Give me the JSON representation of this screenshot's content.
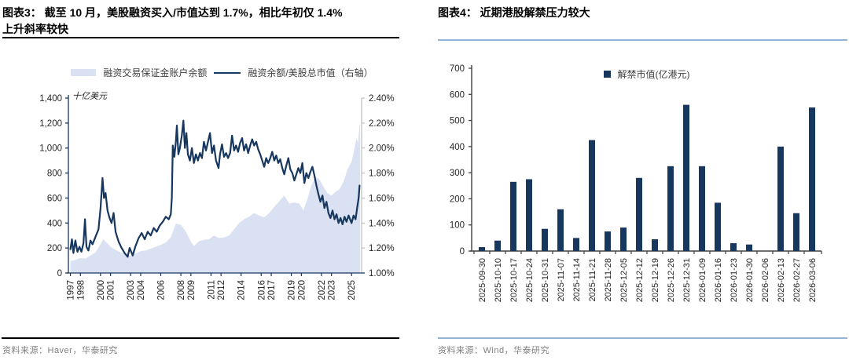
{
  "colors": {
    "navy": "#17375e",
    "area_fill": "#d9e1f2",
    "axis_dark": "#17375e",
    "axis_gray": "#bfbfbf",
    "axis_black": "#404040",
    "label_color": "#262626",
    "underline_black": "#000000",
    "underline_blue": "#95b3d7",
    "source_gray": "#808080"
  },
  "left_panel": {
    "title_line1": "图表3：  截至 10 月，美股融资买入/市值达到 1.7%，相比年初仅 1.4%",
    "title_line2": "上升斜率较快",
    "legend_area_label": "融资交易保证金账户余额",
    "legend_line_label": "融资余额/美股总市值（右轴）",
    "source": "资料来源：Haver，华泰研究"
  },
  "right_panel": {
    "title": "图表4：  近期港股解禁压力较大",
    "legend_label": "解禁市值(亿港元)",
    "source": "资料来源：Wind，华泰研究"
  },
  "chart_data": [
    {
      "type": "area",
      "subtype": "combo-area-line",
      "title": "美股融资交易保证金账户余额与融资余额/美股总市值",
      "x_domain": [
        1996.8,
        2026.0
      ],
      "x_tick_years": [
        1997,
        1998,
        2000,
        2001,
        2003,
        2004,
        2006,
        2008,
        2009,
        2011,
        2012,
        2014,
        2016,
        2017,
        2019,
        2020,
        2022,
        2023,
        2025
      ],
      "y_left": {
        "unit": "十亿美元",
        "min": 0,
        "max": 1400,
        "step": 200,
        "tick_labels": [
          "0",
          "200",
          "400",
          "600",
          "800",
          "1,000",
          "1,200",
          "1,400"
        ]
      },
      "y_right": {
        "min": 1.0,
        "max": 2.4,
        "step": 0.2,
        "tick_labels": [
          "1.00%",
          "1.20%",
          "1.40%",
          "1.60%",
          "1.80%",
          "2.00%",
          "2.20%",
          "2.40%"
        ]
      },
      "series": [
        {
          "name": "融资交易保证金账户余额",
          "kind": "area",
          "axis": "left",
          "points": [
            [
              1997.0,
              95
            ],
            [
              1997.5,
              105
            ],
            [
              1998.0,
              120
            ],
            [
              1998.5,
              115
            ],
            [
              1999.0,
              140
            ],
            [
              1999.5,
              165
            ],
            [
              2000.0,
              230
            ],
            [
              2000.25,
              270
            ],
            [
              2000.6,
              245
            ],
            [
              2001.0,
              210
            ],
            [
              2001.5,
              185
            ],
            [
              2002.0,
              165
            ],
            [
              2002.5,
              150
            ],
            [
              2003.0,
              140
            ],
            [
              2003.5,
              155
            ],
            [
              2004.0,
              175
            ],
            [
              2004.5,
              180
            ],
            [
              2005.0,
              195
            ],
            [
              2005.5,
              210
            ],
            [
              2006.0,
              225
            ],
            [
              2006.5,
              245
            ],
            [
              2007.0,
              285
            ],
            [
              2007.5,
              395
            ],
            [
              2008.0,
              385
            ],
            [
              2008.5,
              330
            ],
            [
              2009.0,
              250
            ],
            [
              2009.3,
              215
            ],
            [
              2009.8,
              255
            ],
            [
              2010.3,
              265
            ],
            [
              2010.8,
              270
            ],
            [
              2011.3,
              300
            ],
            [
              2011.8,
              280
            ],
            [
              2012.3,
              285
            ],
            [
              2012.8,
              300
            ],
            [
              2013.3,
              350
            ],
            [
              2013.8,
              400
            ],
            [
              2014.3,
              430
            ],
            [
              2014.8,
              450
            ],
            [
              2015.3,
              480
            ],
            [
              2015.8,
              460
            ],
            [
              2016.3,
              445
            ],
            [
              2016.8,
              480
            ],
            [
              2017.3,
              530
            ],
            [
              2017.8,
              575
            ],
            [
              2018.3,
              620
            ],
            [
              2018.8,
              555
            ],
            [
              2019.3,
              565
            ],
            [
              2019.8,
              555
            ],
            [
              2020.2,
              500
            ],
            [
              2020.6,
              590
            ],
            [
              2021.0,
              700
            ],
            [
              2021.4,
              770
            ],
            [
              2021.8,
              750
            ],
            [
              2022.2,
              690
            ],
            [
              2022.6,
              640
            ],
            [
              2023.0,
              620
            ],
            [
              2023.4,
              650
            ],
            [
              2023.8,
              670
            ],
            [
              2024.2,
              730
            ],
            [
              2024.6,
              830
            ],
            [
              2025.0,
              890
            ],
            [
              2025.25,
              980
            ],
            [
              2025.5,
              1080
            ],
            [
              2025.65,
              1040
            ],
            [
              2025.75,
              1140
            ],
            [
              2025.85,
              1200
            ]
          ]
        },
        {
          "name": "融资余额/美股总市值（右轴）",
          "kind": "line",
          "axis": "right",
          "points": [
            [
              1997.0,
              1.19
            ],
            [
              1997.15,
              1.27
            ],
            [
              1997.3,
              1.16
            ],
            [
              1997.5,
              1.26
            ],
            [
              1997.7,
              1.17
            ],
            [
              1997.9,
              1.21
            ],
            [
              1998.1,
              1.17
            ],
            [
              1998.3,
              1.24
            ],
            [
              1998.45,
              1.43
            ],
            [
              1998.6,
              1.21
            ],
            [
              1998.8,
              1.18
            ],
            [
              1999.0,
              1.26
            ],
            [
              1999.2,
              1.23
            ],
            [
              1999.5,
              1.29
            ],
            [
              1999.8,
              1.35
            ],
            [
              2000.0,
              1.52
            ],
            [
              2000.2,
              1.76
            ],
            [
              2000.35,
              1.6
            ],
            [
              2000.5,
              1.64
            ],
            [
              2000.7,
              1.5
            ],
            [
              2000.9,
              1.44
            ],
            [
              2001.1,
              1.4
            ],
            [
              2001.3,
              1.48
            ],
            [
              2001.5,
              1.33
            ],
            [
              2001.8,
              1.25
            ],
            [
              2002.1,
              1.2
            ],
            [
              2002.4,
              1.16
            ],
            [
              2002.7,
              1.13
            ],
            [
              2002.9,
              1.2
            ],
            [
              2003.2,
              1.14
            ],
            [
              2003.5,
              1.22
            ],
            [
              2003.8,
              1.28
            ],
            [
              2004.1,
              1.32
            ],
            [
              2004.4,
              1.27
            ],
            [
              2004.7,
              1.33
            ],
            [
              2005.0,
              1.3
            ],
            [
              2005.3,
              1.36
            ],
            [
              2005.6,
              1.33
            ],
            [
              2005.9,
              1.38
            ],
            [
              2006.2,
              1.41
            ],
            [
              2006.5,
              1.45
            ],
            [
              2006.8,
              1.43
            ],
            [
              2007.0,
              1.47
            ],
            [
              2007.1,
              1.6
            ],
            [
              2007.2,
              2.02
            ],
            [
              2007.35,
              1.93
            ],
            [
              2007.5,
              2.05
            ],
            [
              2007.6,
              2.18
            ],
            [
              2007.75,
              1.95
            ],
            [
              2007.9,
              2.0
            ],
            [
              2008.1,
              2.1
            ],
            [
              2008.25,
              2.22
            ],
            [
              2008.4,
              2.0
            ],
            [
              2008.55,
              2.12
            ],
            [
              2008.7,
              1.95
            ],
            [
              2008.9,
              1.9
            ],
            [
              2009.1,
              2.0
            ],
            [
              2009.3,
              1.88
            ],
            [
              2009.5,
              1.95
            ],
            [
              2009.7,
              1.9
            ],
            [
              2009.9,
              1.96
            ],
            [
              2010.1,
              1.92
            ],
            [
              2010.3,
              2.05
            ],
            [
              2010.5,
              1.98
            ],
            [
              2010.7,
              2.05
            ],
            [
              2010.9,
              2.12
            ],
            [
              2011.1,
              1.96
            ],
            [
              2011.3,
              2.02
            ],
            [
              2011.5,
              1.9
            ],
            [
              2011.75,
              1.84
            ],
            [
              2011.9,
              1.95
            ],
            [
              2012.1,
              2.03
            ],
            [
              2012.3,
              1.93
            ],
            [
              2012.5,
              1.96
            ],
            [
              2012.7,
              1.92
            ],
            [
              2012.9,
              1.96
            ],
            [
              2013.1,
              2.1
            ],
            [
              2013.3,
              1.98
            ],
            [
              2013.5,
              2.02
            ],
            [
              2013.7,
              1.97
            ],
            [
              2013.9,
              2.04
            ],
            [
              2014.1,
              2.08
            ],
            [
              2014.3,
              1.98
            ],
            [
              2014.5,
              2.03
            ],
            [
              2014.7,
              1.96
            ],
            [
              2014.9,
              2.02
            ],
            [
              2015.1,
              2.07
            ],
            [
              2015.3,
              2.02
            ],
            [
              2015.5,
              2.05
            ],
            [
              2015.7,
              1.99
            ],
            [
              2015.9,
              1.95
            ],
            [
              2016.1,
              1.9
            ],
            [
              2016.3,
              1.85
            ],
            [
              2016.5,
              1.92
            ],
            [
              2016.7,
              1.88
            ],
            [
              2016.9,
              1.92
            ],
            [
              2017.1,
              1.97
            ],
            [
              2017.3,
              1.9
            ],
            [
              2017.5,
              1.94
            ],
            [
              2017.7,
              1.88
            ],
            [
              2017.9,
              1.91
            ],
            [
              2018.1,
              1.84
            ],
            [
              2018.3,
              1.79
            ],
            [
              2018.5,
              1.86
            ],
            [
              2018.7,
              1.92
            ],
            [
              2018.9,
              1.83
            ],
            [
              2019.1,
              1.8
            ],
            [
              2019.3,
              1.74
            ],
            [
              2019.5,
              1.79
            ],
            [
              2019.7,
              1.84
            ],
            [
              2019.9,
              1.8
            ],
            [
              2020.1,
              1.88
            ],
            [
              2020.3,
              1.72
            ],
            [
              2020.5,
              1.8
            ],
            [
              2020.7,
              1.76
            ],
            [
              2020.9,
              1.81
            ],
            [
              2021.1,
              1.85
            ],
            [
              2021.3,
              1.78
            ],
            [
              2021.5,
              1.7
            ],
            [
              2021.7,
              1.63
            ],
            [
              2021.9,
              1.57
            ],
            [
              2022.1,
              1.62
            ],
            [
              2022.3,
              1.52
            ],
            [
              2022.5,
              1.57
            ],
            [
              2022.7,
              1.48
            ],
            [
              2022.9,
              1.44
            ],
            [
              2023.1,
              1.5
            ],
            [
              2023.3,
              1.43
            ],
            [
              2023.5,
              1.47
            ],
            [
              2023.7,
              1.4
            ],
            [
              2023.9,
              1.44
            ],
            [
              2024.1,
              1.39
            ],
            [
              2024.3,
              1.45
            ],
            [
              2024.5,
              1.41
            ],
            [
              2024.7,
              1.46
            ],
            [
              2024.9,
              1.42
            ],
            [
              2025.0,
              1.4
            ],
            [
              2025.2,
              1.46
            ],
            [
              2025.4,
              1.43
            ],
            [
              2025.55,
              1.52
            ],
            [
              2025.7,
              1.6
            ],
            [
              2025.8,
              1.7
            ]
          ]
        }
      ],
      "grid": false,
      "legend_position": "top"
    },
    {
      "type": "bar",
      "title": "近期港股解禁压力较大",
      "legend": "解禁市值(亿港元)",
      "categories": [
        "2025-09-30",
        "2025-10-10",
        "2025-10-17",
        "2025-10-24",
        "2025-10-31",
        "2025-11-07",
        "2025-11-14",
        "2025-11-21",
        "2025-11-28",
        "2025-12-05",
        "2025-12-12",
        "2025-12-19",
        "2025-12-26",
        "2025-12-31",
        "2026-01-09",
        "2026-01-16",
        "2026-01-23",
        "2026-01-30",
        "2026-02-06",
        "2026-02-13",
        "2026-02-27",
        "2026-03-06"
      ],
      "values": [
        15,
        40,
        265,
        275,
        85,
        160,
        50,
        425,
        75,
        90,
        280,
        45,
        325,
        560,
        325,
        185,
        30,
        25,
        0,
        400,
        145,
        550
      ],
      "ylim": [
        0,
        700
      ],
      "y_ticks": [
        0,
        100,
        200,
        300,
        400,
        500,
        600,
        700
      ],
      "grid": false,
      "legend_position": "top"
    }
  ]
}
